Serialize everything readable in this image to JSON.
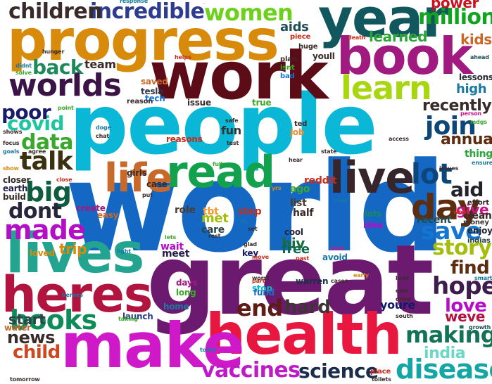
{
  "cloud": {
    "words": [
      {
        "text": "world",
        "color": "#1468c4"
      },
      {
        "text": "people",
        "color": "#0ab7d6"
      },
      {
        "text": "great",
        "color": "#6c1a6f"
      },
      {
        "text": "work",
        "color": "#5b0c16"
      },
      {
        "text": "progress",
        "color": "#d88a0a"
      },
      {
        "text": "year",
        "color": "#11575e"
      },
      {
        "text": "book",
        "color": "#a11a7f"
      },
      {
        "text": "health",
        "color": "#e8173f"
      },
      {
        "text": "make",
        "color": "#cf19c9"
      },
      {
        "text": "lives",
        "color": "#22a491"
      },
      {
        "text": "heres",
        "color": "#b21440"
      },
      {
        "text": "read",
        "color": "#12a14c"
      },
      {
        "text": "life",
        "color": "#c8692b"
      },
      {
        "text": "live",
        "color": "#36262b"
      },
      {
        "text": "learn",
        "color": "#a8d70f"
      },
      {
        "text": "worlds",
        "color": "#3b1347"
      },
      {
        "text": "day",
        "color": "#5e2c0e"
      },
      {
        "text": "lot",
        "color": "#0d467b"
      },
      {
        "text": "made",
        "color": "#b40ec7"
      },
      {
        "text": "big",
        "color": "#0f5d40"
      },
      {
        "text": "incredible",
        "color": "#2d3c8e"
      },
      {
        "text": "children",
        "color": "#3a2b2b"
      },
      {
        "text": "women",
        "color": "#6cd01c"
      },
      {
        "text": "million",
        "color": "#11a51f"
      },
      {
        "text": "books",
        "color": "#0d8b58"
      },
      {
        "text": "disease",
        "color": "#13a6a5"
      },
      {
        "text": "vaccines",
        "color": "#bf1ac7"
      },
      {
        "text": "science",
        "color": "#1b2d4a"
      },
      {
        "text": "making",
        "color": "#137254"
      },
      {
        "text": "story",
        "color": "#a4bd09"
      },
      {
        "text": "hope",
        "color": "#3e1c4d"
      },
      {
        "text": "end",
        "color": "#5e1c15"
      },
      {
        "text": "talk",
        "color": "#3b3010"
      },
      {
        "text": "data",
        "color": "#3aa92b"
      },
      {
        "text": "covid",
        "color": "#1dc69f"
      },
      {
        "text": "poor",
        "color": "#1b1b6c"
      },
      {
        "text": "back",
        "color": "#1e8a5a"
      },
      {
        "text": "join",
        "color": "#0d4679"
      },
      {
        "text": "save",
        "color": "#1576d1"
      },
      {
        "text": "love",
        "color": "#b40ec7"
      },
      {
        "text": "find",
        "color": "#5e2c0e"
      },
      {
        "text": "aid",
        "color": "#24222a"
      },
      {
        "text": "recently",
        "color": "#3a2b2b"
      },
      {
        "text": "annual",
        "color": "#5e2c0e"
      },
      {
        "text": "dont",
        "color": "#27253b"
      },
      {
        "text": "hard",
        "color": "#3d3535"
      },
      {
        "text": "news",
        "color": "#3a2b2b"
      },
      {
        "text": "child",
        "color": "#d0471f"
      },
      {
        "text": "india",
        "color": "#6cd7c4"
      },
      {
        "text": "start",
        "color": "#2b4547"
      },
      {
        "text": "kids",
        "color": "#c8692b"
      },
      {
        "text": "power",
        "color": "#c8101f"
      },
      {
        "text": "aids",
        "color": "#1e4d54"
      },
      {
        "text": "learned",
        "color": "#2ca43a"
      },
      {
        "text": "weve",
        "color": "#b21440"
      },
      {
        "text": "youre",
        "color": "#131a6b"
      },
      {
        "text": "high",
        "color": "#1a79a0"
      },
      {
        "text": "give",
        "color": "#d0128a"
      },
      {
        "text": "trip",
        "color": "#d88a0a"
      },
      {
        "text": "hiv",
        "color": "#1b6c3c"
      },
      {
        "text": "visit",
        "color": "#13a6a5"
      },
      {
        "text": "free",
        "color": "#0c6a4b"
      },
      {
        "text": "team",
        "color": "#3a2b2b"
      },
      {
        "text": "tesla",
        "color": "#2e3346"
      },
      {
        "text": "tech",
        "color": "#1576d1"
      },
      {
        "text": "fun",
        "color": "#343434"
      },
      {
        "text": "efforts",
        "color": "#3a2b2b"
      },
      {
        "text": "saved",
        "color": "#c8692b"
      },
      {
        "text": "lessons",
        "color": "#222a32"
      },
      {
        "text": "home",
        "color": "#1a79a0"
      },
      {
        "text": "reddit",
        "color": "#ca2c1a"
      },
      {
        "text": "ago",
        "color": "#3aa92b"
      },
      {
        "text": "list",
        "color": "#4d3b30"
      },
      {
        "text": "step",
        "color": "#ca2c1a"
      },
      {
        "text": "lots",
        "color": "#1a8a5e"
      },
      {
        "text": "idea",
        "color": "#b40ec7"
      },
      {
        "text": "meet",
        "color": "#23204a"
      },
      {
        "text": "cool",
        "color": "#27253b"
      },
      {
        "text": "avoid",
        "color": "#1a79a0"
      },
      {
        "text": "key",
        "color": "#131a6b"
      },
      {
        "text": "days",
        "color": "#a11a7f"
      },
      {
        "text": "long",
        "color": "#3aa92b"
      },
      {
        "text": "stop",
        "color": "#0ab7d6"
      },
      {
        "text": "fund",
        "color": "#1b6dc0"
      },
      {
        "text": "warren",
        "color": "#1b2d4a"
      },
      {
        "text": "launch",
        "color": "#2d3c8e"
      },
      {
        "text": "water",
        "color": "#c8692b"
      },
      {
        "text": "role",
        "color": "#4d3b30"
      },
      {
        "text": "wait",
        "color": "#b40ec7"
      },
      {
        "text": "met",
        "color": "#a4bd09"
      },
      {
        "text": "tbt",
        "color": "#f39a2a"
      },
      {
        "text": "care",
        "color": "#2b4547"
      },
      {
        "text": "job",
        "color": "#ef8a2a"
      },
      {
        "text": "half",
        "color": "#3a2b2b"
      },
      {
        "text": "recent",
        "color": "#1e4d54"
      },
      {
        "text": "clean",
        "color": "#3a2b2b"
      },
      {
        "text": "thing",
        "color": "#2ca43a"
      },
      {
        "text": "enjoy",
        "color": "#222a32"
      },
      {
        "text": "money",
        "color": "#3d3535"
      },
      {
        "text": "effort",
        "color": "#3a2b2b"
      },
      {
        "text": "indias",
        "color": "#2b4547"
      },
      {
        "text": "closer",
        "color": "#3a2b2b"
      },
      {
        "text": "earth",
        "color": "#23204a"
      },
      {
        "text": "build",
        "color": "#3a2b2b"
      },
      {
        "text": "loved",
        "color": "#d88a0a"
      },
      {
        "text": "create",
        "color": "#a11a7f"
      },
      {
        "text": "easy",
        "color": "#c8692b"
      },
      {
        "text": "girls",
        "color": "#3a2b2b"
      },
      {
        "text": "case",
        "color": "#3a2b2b"
      },
      {
        "text": "reasons",
        "color": "#ca2c1a"
      },
      {
        "text": "issue",
        "color": "#3a2b2b"
      },
      {
        "text": "reason",
        "color": "#3a2b2b"
      },
      {
        "text": "true",
        "color": "#3aa92b"
      },
      {
        "text": "bad",
        "color": "#1576d1"
      },
      {
        "text": "isnt",
        "color": "#3aa92b"
      },
      {
        "text": "plan",
        "color": "#3a2b2b"
      },
      {
        "text": "huge",
        "color": "#3a2b2b"
      },
      {
        "text": "youll",
        "color": "#3a2b2b"
      },
      {
        "text": "piece",
        "color": "#ca2c1a"
      },
      {
        "text": "death",
        "color": "#ca2c1a"
      },
      {
        "text": "ahead",
        "color": "#1e4d54"
      },
      {
        "text": "helps",
        "color": "#ca2c1a"
      },
      {
        "text": "hunger",
        "color": "#3a2b2b"
      },
      {
        "text": "didnt",
        "color": "#1a79a0"
      },
      {
        "text": "solve",
        "color": "#3aa92b"
      },
      {
        "text": "point",
        "color": "#3aa92b"
      },
      {
        "text": "shows",
        "color": "#3a2b2b"
      },
      {
        "text": "focus",
        "color": "#3a2b2b"
      },
      {
        "text": "goals",
        "color": "#1a79a0"
      },
      {
        "text": "agree",
        "color": "#3a2b2b"
      },
      {
        "text": "show",
        "color": "#d88a0a"
      },
      {
        "text": "close",
        "color": "#ca2c1a"
      },
      {
        "text": "put",
        "color": "#3a2b2b"
      },
      {
        "text": "safe",
        "color": "#3a2b2b"
      },
      {
        "text": "test",
        "color": "#3a2b2b"
      },
      {
        "text": "doge",
        "color": "#1a79a0"
      },
      {
        "text": "chat",
        "color": "#3a2b2b"
      },
      {
        "text": "ted",
        "color": "#3a2b2b"
      },
      {
        "text": "state",
        "color": "#3a2b2b"
      },
      {
        "text": "access",
        "color": "#3a2b2b"
      },
      {
        "text": "hear",
        "color": "#3a2b2b"
      },
      {
        "text": "mdgs",
        "color": "#3aa92b"
      },
      {
        "text": "ensure",
        "color": "#1a79a0"
      },
      {
        "text": "person",
        "color": "#d0128a"
      },
      {
        "text": "issues",
        "color": "#3a2b2b"
      },
      {
        "text": "wont",
        "color": "#ca2c1a"
      },
      {
        "text": "yrs",
        "color": "#d88a0a"
      },
      {
        "text": "real",
        "color": "#1a79a0"
      },
      {
        "text": "full",
        "color": "#3aa92b"
      },
      {
        "text": "ill",
        "color": "#1a79a0"
      },
      {
        "text": "set",
        "color": "#3a2b2b"
      },
      {
        "text": "lets",
        "color": "#3aa92b"
      },
      {
        "text": "rest",
        "color": "#3a2b2b"
      },
      {
        "text": "light",
        "color": "#1a79a0"
      },
      {
        "text": "glad",
        "color": "#3a2b2b"
      },
      {
        "text": "move",
        "color": "#ca2c1a"
      },
      {
        "text": "kind",
        "color": "#d0128a"
      },
      {
        "text": "heroes",
        "color": "#1a79a0"
      },
      {
        "text": "worst",
        "color": "#3a2b2b"
      },
      {
        "text": "past",
        "color": "#ca2c1a"
      },
      {
        "text": "part",
        "color": "#ca2c1a"
      },
      {
        "text": "cases",
        "color": "#3a2b2b"
      },
      {
        "text": "early",
        "color": "#d88a0a"
      },
      {
        "text": "lead",
        "color": "#3a2b2b"
      },
      {
        "text": "exle",
        "color": "#3a2b2b"
      },
      {
        "text": "drive",
        "color": "#3a2b2b"
      },
      {
        "text": "smart",
        "color": "#1a79a0"
      },
      {
        "text": "taking",
        "color": "#3aa92b"
      },
      {
        "text": "growth",
        "color": "#1e4d54"
      },
      {
        "text": "south",
        "color": "#3a2b2b"
      },
      {
        "text": "toilet",
        "color": "#1a79a0"
      },
      {
        "text": "place",
        "color": "#ca2c1a"
      },
      {
        "text": "toilets",
        "color": "#3a2b2b"
      },
      {
        "text": "tomorrow",
        "color": "#3a2b2b"
      },
      {
        "text": "response",
        "color": "#1a79a0"
      }
    ]
  }
}
